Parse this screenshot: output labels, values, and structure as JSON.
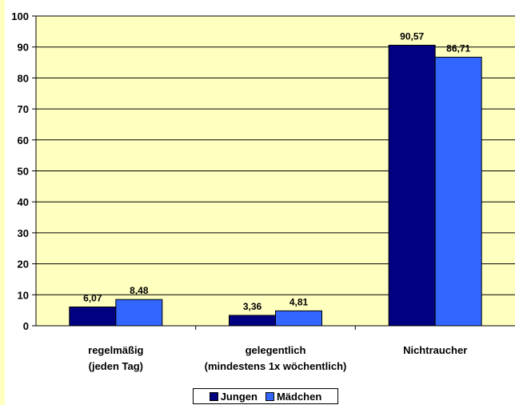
{
  "chart_data": {
    "type": "bar",
    "categories": [
      [
        "regelmäßig",
        "(jeden Tag)"
      ],
      [
        "gelegentlich",
        "(mindestens 1x wöchentlich)"
      ],
      [
        "Nichtraucher"
      ]
    ],
    "series": [
      {
        "name": "Jungen",
        "values": [
          6.07,
          3.36,
          90.57
        ],
        "labels": [
          "6,07",
          "3,36",
          "90,57"
        ],
        "color": "#000080"
      },
      {
        "name": "Mädchen",
        "values": [
          8.48,
          4.81,
          86.71
        ],
        "labels": [
          "8,48",
          "4,81",
          "86,71"
        ],
        "color": "#3366FF"
      }
    ],
    "ylim": [
      0,
      100
    ],
    "yticks": [
      0,
      10,
      20,
      30,
      40,
      50,
      60,
      70,
      80,
      90,
      100
    ],
    "grid": true,
    "plot_background": "#FFFFC0",
    "legend_position": "bottom"
  }
}
